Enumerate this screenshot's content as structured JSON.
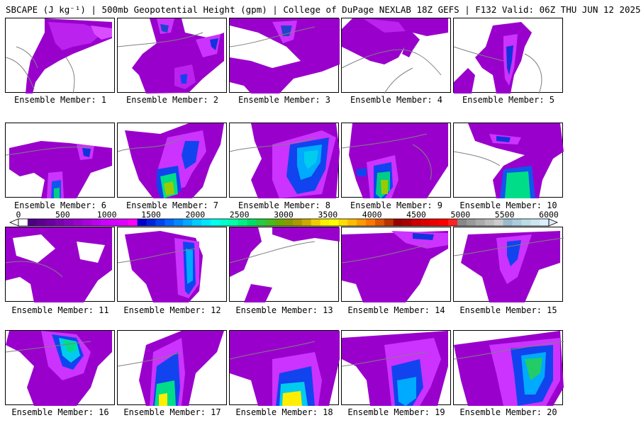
{
  "title": "SBCAPE (J kg⁻¹) | 500mb Geopotential Height (gpm) | College of DuPage NEXLAB 18Z GEFS | F132 Valid: 06Z THU JUN 12 2025",
  "colorbar": {
    "ticks": [
      "0",
      "500",
      "1000",
      "1500",
      "2000",
      "2500",
      "3000",
      "3500",
      "4000",
      "4500",
      "5000",
      "5500",
      "6000"
    ],
    "min": 0,
    "max": 6000,
    "colors": [
      "#ffffff",
      "#4b0082",
      "#5a0090",
      "#6a00a0",
      "#7a00b0",
      "#8a00c0",
      "#9a00d0",
      "#aa00e0",
      "#bb00ee",
      "#cc00ff",
      "#d400ff",
      "#e000ff",
      "#ff00ff",
      "#0000cd",
      "#0022dd",
      "#0044ee",
      "#0066ff",
      "#0088ff",
      "#00aaff",
      "#00ccff",
      "#00e5ff",
      "#00ffee",
      "#00ffcc",
      "#00ffaa",
      "#00ee88",
      "#00dd66",
      "#22cc44",
      "#44bb22",
      "#66aa00",
      "#889900",
      "#aa9900",
      "#ccaa00",
      "#eecc00",
      "#ffee00",
      "#ffff00",
      "#ffdd00",
      "#ffbb00",
      "#ff9900",
      "#ff7700",
      "#dd5500",
      "#bb3300",
      "#990000",
      "#aa0000",
      "#cc0000",
      "#dd0000",
      "#ee0000",
      "#ff0000",
      "#ff2222",
      "#888888",
      "#999999",
      "#aaaaaa",
      "#bbbbbb",
      "#cccccc",
      "#99bbcc",
      "#aaccdd",
      "#bbdde5",
      "#cce5ee",
      "#ddeeff"
    ]
  },
  "panels": [
    {
      "label": "Ensemble Member: 1"
    },
    {
      "label": "Ensemble Member: 2"
    },
    {
      "label": "Ensemble Member: 3"
    },
    {
      "label": "Ensemble Member: 4"
    },
    {
      "label": "Ensemble Member: 5"
    },
    {
      "label": "Ensemble Member: 6"
    },
    {
      "label": "Ensemble Member: 7"
    },
    {
      "label": "Ensemble Member: 8"
    },
    {
      "label": "Ensemble Member: 9"
    },
    {
      "label": "Ensemble Member: 10"
    },
    {
      "label": "Ensemble Member: 11"
    },
    {
      "label": "Ensemble Member: 12"
    },
    {
      "label": "Ensemble Member: 13"
    },
    {
      "label": "Ensemble Member: 14"
    },
    {
      "label": "Ensemble Member: 15"
    },
    {
      "label": "Ensemble Member: 16"
    },
    {
      "label": "Ensemble Member: 17"
    },
    {
      "label": "Ensemble Member: 18"
    },
    {
      "label": "Ensemble Member: 19"
    },
    {
      "label": "Ensemble Member: 20"
    }
  ]
}
